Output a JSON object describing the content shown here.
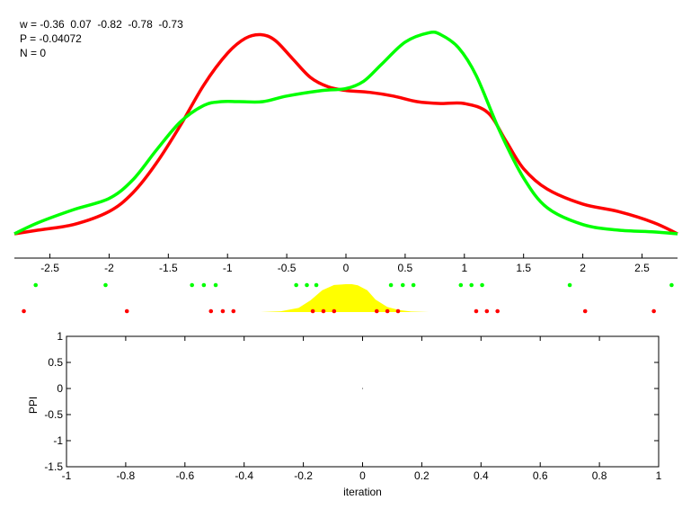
{
  "header": {
    "w_line": "w = -0.36  0.07  -0.82  -0.78  -0.73",
    "p_line": "P = -0.04072",
    "n_line": "N = 0"
  },
  "colors": {
    "red": "#ff0000",
    "green": "#00ff00",
    "yellow": "#ffff00",
    "axis": "#000000"
  },
  "chart_data": [
    {
      "type": "line",
      "title": "",
      "xlabel": "",
      "ylabel": "",
      "xlim": [
        -2.8,
        2.8
      ],
      "xticks": [
        "-2.5",
        "-2",
        "-1.5",
        "-1",
        "-0.5",
        "0",
        "0.5",
        "1",
        "1.5",
        "2",
        "2.5"
      ],
      "xtick_values": [
        -2.5,
        -2,
        -1.5,
        -1,
        -0.5,
        0,
        0.5,
        1,
        1.5,
        2,
        2.5
      ],
      "grid": false,
      "series": [
        {
          "color": "red",
          "x": [
            -2.8,
            -2.6,
            -2.3,
            -2.0,
            -1.8,
            -1.6,
            -1.4,
            -1.2,
            -1.0,
            -0.85,
            -0.72,
            -0.6,
            -0.45,
            -0.3,
            -0.15,
            0.0,
            0.2,
            0.4,
            0.6,
            0.8,
            1.0,
            1.2,
            1.35,
            1.5,
            1.7,
            2.0,
            2.3,
            2.6,
            2.8
          ],
          "values": [
            0.0,
            0.02,
            0.05,
            0.12,
            0.22,
            0.38,
            0.58,
            0.8,
            0.97,
            1.05,
            1.07,
            1.04,
            0.94,
            0.84,
            0.79,
            0.77,
            0.76,
            0.74,
            0.71,
            0.7,
            0.7,
            0.65,
            0.5,
            0.35,
            0.24,
            0.16,
            0.12,
            0.06,
            0.0
          ]
        },
        {
          "color": "green",
          "x": [
            -2.8,
            -2.6,
            -2.3,
            -2.0,
            -1.8,
            -1.6,
            -1.4,
            -1.2,
            -1.05,
            -0.9,
            -0.7,
            -0.5,
            -0.2,
            0.0,
            0.15,
            0.3,
            0.5,
            0.7,
            0.8,
            0.95,
            1.1,
            1.3,
            1.5,
            1.7,
            2.0,
            2.3,
            2.6,
            2.8
          ],
          "values": [
            0.0,
            0.06,
            0.13,
            0.19,
            0.29,
            0.45,
            0.6,
            0.69,
            0.71,
            0.71,
            0.71,
            0.74,
            0.77,
            0.78,
            0.82,
            0.91,
            1.03,
            1.08,
            1.07,
            1.0,
            0.85,
            0.55,
            0.3,
            0.14,
            0.05,
            0.02,
            0.01,
            0.0
          ]
        }
      ],
      "points": {
        "green": [
          -2.62,
          -2.03,
          -1.3,
          -1.2,
          -1.1,
          -0.42,
          -0.33,
          -0.25,
          0.38,
          0.48,
          0.57,
          0.97,
          1.06,
          1.15,
          1.89,
          2.75
        ],
        "red": [
          -2.72,
          -1.85,
          -1.14,
          -1.04,
          -0.95,
          -0.28,
          -0.19,
          -0.1,
          0.26,
          0.35,
          0.44,
          1.1,
          1.19,
          1.28,
          2.02,
          2.6
        ]
      },
      "filled_density": {
        "color": "yellow",
        "x": [
          -0.72,
          -0.55,
          -0.4,
          -0.3,
          -0.2,
          -0.1,
          0.0,
          0.05,
          0.1,
          0.18,
          0.25,
          0.35,
          0.45,
          0.55,
          0.7
        ],
        "values": [
          0.0,
          0.03,
          0.15,
          0.42,
          0.78,
          0.97,
          1.0,
          1.0,
          0.96,
          0.78,
          0.45,
          0.18,
          0.07,
          0.02,
          0.0
        ]
      }
    },
    {
      "type": "line",
      "title": "",
      "xlabel": "iteration",
      "ylabel": "PPI",
      "xlim": [
        -1,
        1
      ],
      "ylim": [
        -1.5,
        1
      ],
      "xticks": [
        "-1",
        "-0.8",
        "-0.6",
        "-0.4",
        "-0.2",
        "0",
        "0.2",
        "0.4",
        "0.6",
        "0.8",
        "1"
      ],
      "xtick_values": [
        -1,
        -0.8,
        -0.6,
        -0.4,
        -0.2,
        0,
        0.2,
        0.4,
        0.6,
        0.8,
        1
      ],
      "yticks": [
        "1",
        "0.5",
        "0",
        "-0.5",
        "-1",
        "-1.5"
      ],
      "ytick_values": [
        1,
        0.5,
        0,
        -0.5,
        -1,
        -1.5
      ],
      "grid": false,
      "series": [
        {
          "x": [
            0
          ],
          "values": [
            0
          ]
        }
      ]
    }
  ]
}
